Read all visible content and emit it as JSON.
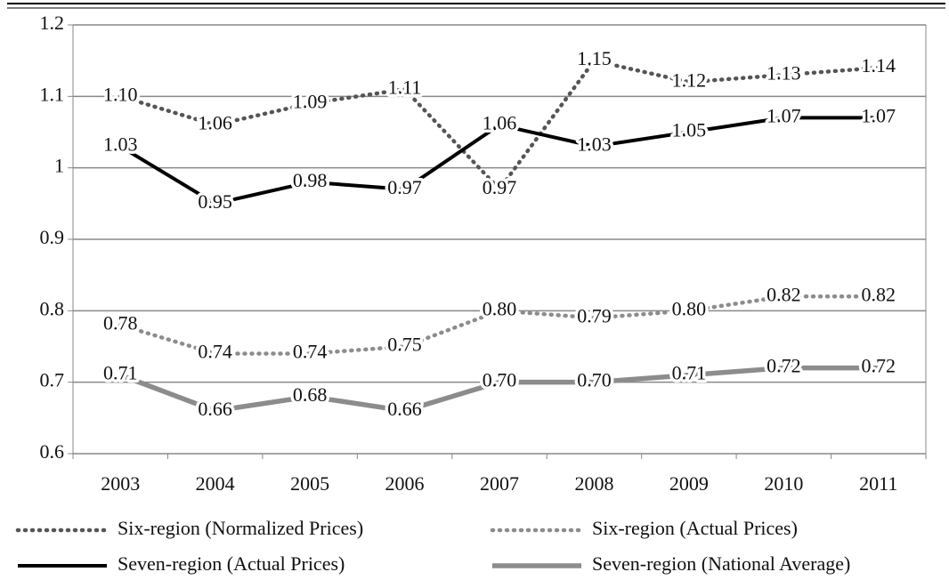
{
  "chart_data": {
    "type": "line",
    "categories": [
      "2003",
      "2004",
      "2005",
      "2006",
      "2007",
      "2008",
      "2009",
      "2010",
      "2011"
    ],
    "series": [
      {
        "name": "Six-region (Normalized Prices)",
        "color": "#555555",
        "line_style": "dotted",
        "values": [
          1.1,
          1.06,
          1.09,
          1.11,
          0.97,
          1.15,
          1.12,
          1.13,
          1.14
        ],
        "value_labels": [
          "1.10",
          "1.06",
          "1.09",
          "1.11",
          "0.97",
          "1.15",
          "1.12",
          "1.13",
          "1.14"
        ]
      },
      {
        "name": "Six-region (Actual Prices)",
        "color": "#8c8c8c",
        "line_style": "dotted",
        "values": [
          0.78,
          0.74,
          0.74,
          0.75,
          0.8,
          0.79,
          0.8,
          0.82,
          0.82
        ],
        "value_labels": [
          "0.78",
          "0.74",
          "0.74",
          "0.75",
          "0.80",
          "0.79",
          "0.80",
          "0.82",
          "0.82"
        ]
      },
      {
        "name": "Seven-region (Actual Prices)",
        "color": "#000000",
        "line_style": "solid",
        "values": [
          1.03,
          0.95,
          0.98,
          0.97,
          1.06,
          1.03,
          1.05,
          1.07,
          1.07
        ],
        "value_labels": [
          "1.03",
          "0.95",
          "0.98",
          "0.97",
          "1.06",
          "1.03",
          "1.05",
          "1.07",
          "1.07"
        ]
      },
      {
        "name": "Seven-region (National Average)",
        "color": "#8c8c8c",
        "line_style": "solid",
        "values": [
          0.71,
          0.66,
          0.68,
          0.66,
          0.7,
          0.7,
          0.71,
          0.72,
          0.72
        ],
        "value_labels": [
          "0.71",
          "0.66",
          "0.68",
          "0.66",
          "0.70",
          "0.70",
          "0.71",
          "0.72",
          "0.72"
        ]
      }
    ],
    "ylim": [
      0.6,
      1.2
    ],
    "yticks": [
      0.6,
      0.7,
      0.8,
      0.9,
      1,
      1.1,
      1.2
    ],
    "grid": true
  }
}
